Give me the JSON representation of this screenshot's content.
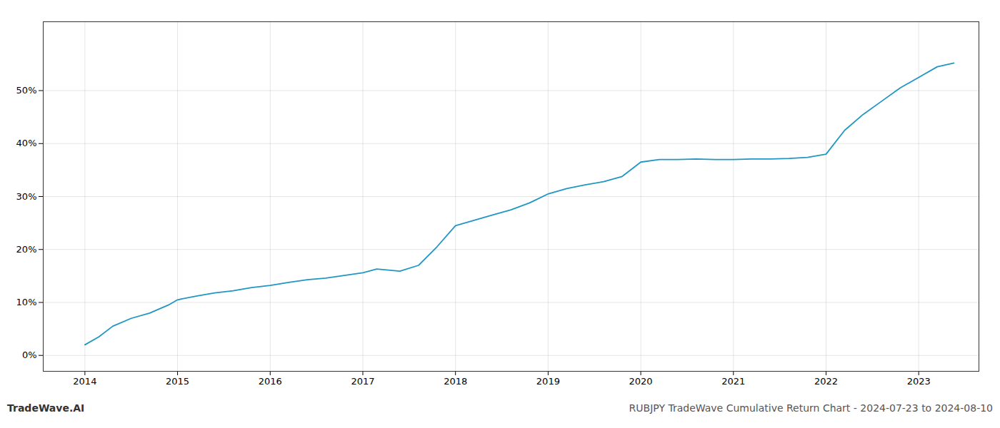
{
  "chart_data": {
    "type": "line",
    "title": "RUBJPY TradeWave Cumulative Return Chart - 2024-07-23 to 2024-08-10",
    "annotations": [
      "TradeWave.AI"
    ],
    "color": "#2196c4",
    "x": [
      2014.0,
      2014.15,
      2014.3,
      2014.5,
      2014.7,
      2014.9,
      2015.0,
      2015.2,
      2015.4,
      2015.6,
      2015.8,
      2016.0,
      2016.2,
      2016.4,
      2016.6,
      2016.8,
      2017.0,
      2017.15,
      2017.4,
      2017.6,
      2017.8,
      2018.0,
      2018.2,
      2018.4,
      2018.6,
      2018.8,
      2019.0,
      2019.2,
      2019.4,
      2019.6,
      2019.8,
      2020.0,
      2020.2,
      2020.4,
      2020.6,
      2020.8,
      2021.0,
      2021.2,
      2021.4,
      2021.6,
      2021.8,
      2022.0,
      2022.2,
      2022.4,
      2022.6,
      2022.8,
      2023.0,
      2023.2,
      2023.38
    ],
    "values": [
      2.0,
      3.5,
      5.5,
      7.0,
      8.0,
      9.5,
      10.5,
      11.2,
      11.8,
      12.2,
      12.8,
      13.2,
      13.8,
      14.3,
      14.6,
      15.1,
      15.6,
      16.3,
      15.9,
      17.0,
      20.5,
      24.5,
      25.5,
      26.5,
      27.5,
      28.8,
      30.5,
      31.5,
      32.2,
      32.8,
      33.8,
      36.5,
      37.0,
      37.0,
      37.1,
      37.0,
      37.0,
      37.1,
      37.1,
      37.2,
      37.4,
      38.0,
      42.5,
      45.5,
      48.0,
      50.5,
      52.5,
      54.5,
      55.2
    ],
    "xlim": [
      2013.55,
      2023.65
    ],
    "ylim": [
      -3,
      63
    ],
    "xticks": [
      2014,
      2015,
      2016,
      2017,
      2018,
      2019,
      2020,
      2021,
      2022,
      2023
    ],
    "yticks": [
      {
        "value": 0,
        "label": "0%"
      },
      {
        "value": 10,
        "label": "10%"
      },
      {
        "value": 20,
        "label": "20%"
      },
      {
        "value": 30,
        "label": "30%"
      },
      {
        "value": 40,
        "label": "40%"
      },
      {
        "value": 50,
        "label": "50%"
      }
    ],
    "grid": true
  }
}
